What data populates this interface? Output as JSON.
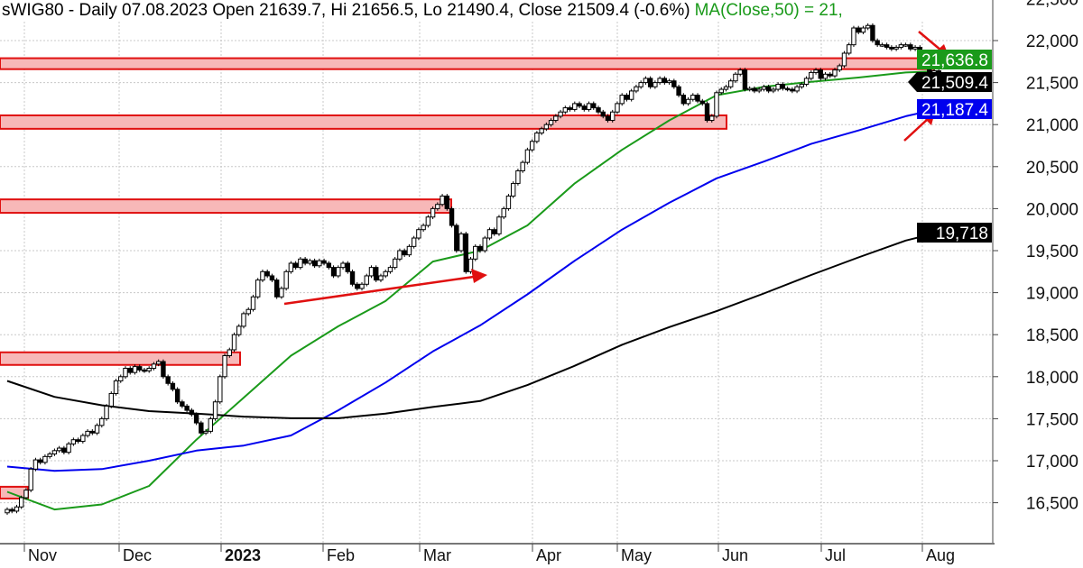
{
  "header": {
    "title": "sWIG80 - Daily 07.08.2023 Open 21639.7, Hi 21656.5, Lo 21490.4, Close 21509.4 (-0.6%)",
    "ma_text": "MA(Close,50) = 21,"
  },
  "chart_data": {
    "type": "candlestick",
    "symbol": "sWIG80",
    "interval": "Daily",
    "last_bar": {
      "date": "07.08.2023",
      "open": 21639.7,
      "high": 21656.5,
      "low": 21490.4,
      "close": 21509.4,
      "change_pct": -0.6
    },
    "x_tick_labels": [
      "Nov",
      "Dec",
      "2023",
      "Feb",
      "Mar",
      "Apr",
      "May",
      "Jun",
      "Jul",
      "Aug"
    ],
    "y_tick_labels": [
      "22,500",
      "22,000",
      "21,500",
      "21,000",
      "20,500",
      "20,000",
      "19,500",
      "19,000",
      "18,500",
      "18,000",
      "17,500",
      "17,000",
      "16,500"
    ],
    "ylim": [
      16250,
      22500
    ],
    "y_axis_side": "right",
    "grid": true,
    "close": [
      16420,
      16400,
      16450,
      16560,
      16650,
      16900,
      17010,
      16980,
      17050,
      17080,
      17120,
      17150,
      17100,
      17200,
      17250,
      17230,
      17300,
      17350,
      17330,
      17420,
      17500,
      17650,
      17800,
      17950,
      18000,
      18100,
      18050,
      18120,
      18080,
      18070,
      18100,
      18150,
      18180,
      18000,
      17920,
      17850,
      17700,
      17650,
      17600,
      17550,
      17450,
      17330,
      17350,
      17500,
      17700,
      18000,
      18250,
      18320,
      18500,
      18600,
      18750,
      18800,
      18950,
      19150,
      19250,
      19200,
      19150,
      18950,
      19050,
      19250,
      19350,
      19300,
      19400,
      19350,
      19380,
      19320,
      19380,
      19350,
      19300,
      19200,
      19300,
      19350,
      19250,
      19100,
      19050,
      19100,
      19200,
      19300,
      19150,
      19200,
      19250,
      19300,
      19400,
      19500,
      19450,
      19550,
      19650,
      19750,
      19800,
      19900,
      20000,
      20050,
      20150,
      20000,
      19800,
      19500,
      19700,
      19250,
      19400,
      19550,
      19500,
      19650,
      19750,
      19700,
      19900,
      20000,
      20150,
      20300,
      20450,
      20550,
      20700,
      20800,
      20900,
      20950,
      21000,
      21050,
      21100,
      21150,
      21200,
      21180,
      21250,
      21220,
      21180,
      21250,
      21200,
      21150,
      21100,
      21050,
      21150,
      21250,
      21350,
      21300,
      21400,
      21450,
      21500,
      21550,
      21450,
      21500,
      21550,
      21500,
      21520,
      21450,
      21350,
      21250,
      21300,
      21350,
      21280,
      21250,
      21050,
      21100,
      21380,
      21420,
      21450,
      21520,
      21600,
      21650,
      21420,
      21430,
      21400,
      21420,
      21450,
      21400,
      21420,
      21480,
      21430,
      21420,
      21400,
      21450,
      21480,
      21550,
      21620,
      21650,
      21550,
      21600,
      21580,
      21650,
      21700,
      21850,
      21950,
      22150,
      22100,
      22150,
      22180,
      22000,
      21950,
      21950,
      21920,
      21900,
      21920,
      21950,
      21950,
      21900,
      21920,
      21850,
      21700,
      21620,
      21640,
      21509.4
    ],
    "moving_averages": [
      {
        "name": "MA(Close,50)",
        "color": "#1a9a1a",
        "last_value": "21,636.8",
        "values_every_10_bars": [
          16630,
          16420,
          16480,
          16700,
          17250,
          17750,
          18250,
          18600,
          18900,
          19370,
          19500,
          19800,
          20300,
          20700,
          21050,
          21350,
          21450,
          21510,
          21560,
          21620,
          21636.8
        ]
      },
      {
        "color": "#0000ee",
        "last_value": "21,187.4",
        "values_every_10_bars": [
          16930,
          16880,
          16900,
          17000,
          17120,
          17180,
          17300,
          17600,
          17930,
          18300,
          18610,
          18980,
          19380,
          19750,
          20070,
          20360,
          20560,
          20770,
          20930,
          21100,
          21187.4
        ]
      },
      {
        "color": "#000000",
        "last_value": "19,718",
        "values_every_10_bars": [
          17950,
          17760,
          17660,
          17590,
          17560,
          17525,
          17505,
          17505,
          17560,
          17640,
          17710,
          17900,
          18130,
          18380,
          18590,
          18780,
          18990,
          19210,
          19420,
          19620,
          19718
        ]
      }
    ],
    "last_close_label": "21,509.4",
    "zones": [
      {
        "low": 21660,
        "high": 21790
      },
      {
        "low": 20950,
        "high": 21110
      },
      {
        "low": 19950,
        "high": 20110
      },
      {
        "low": 18140,
        "high": 18290
      },
      {
        "low": 16550,
        "high": 16690
      }
    ],
    "colors": {
      "zone_fill": "#f7b8b8",
      "zone_border": "#e01010",
      "arrow": "#e01010",
      "grid": "#c8c8c8"
    }
  }
}
